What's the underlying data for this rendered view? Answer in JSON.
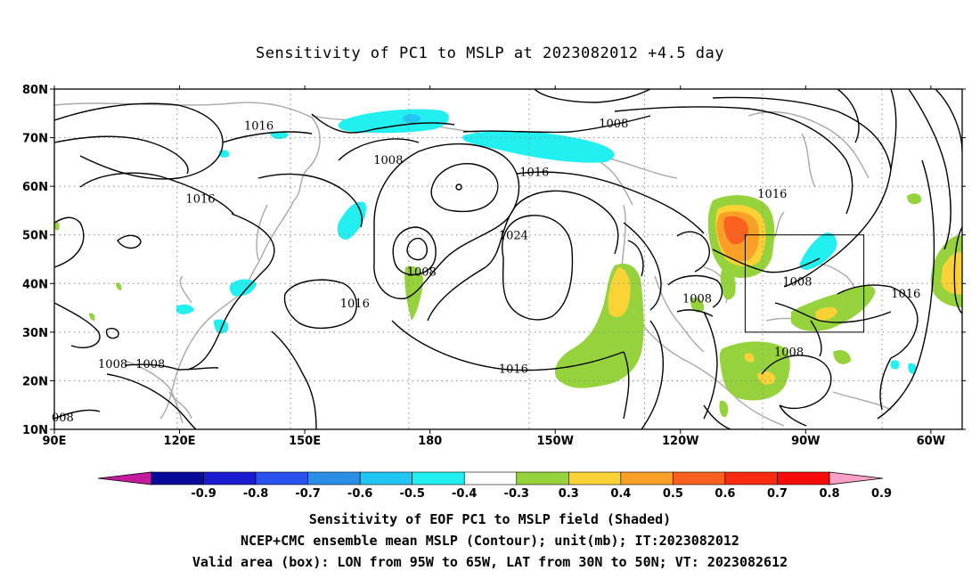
{
  "title": "Sensitivity of PC1 to MSLP at 2023082012 +4.5 day",
  "axes": {
    "lat_labels": [
      "80N",
      "70N",
      "60N",
      "50N",
      "40N",
      "30N",
      "20N",
      "10N"
    ],
    "lon_labels": [
      "90E",
      "120E",
      "150E",
      "180",
      "150W",
      "120W",
      "90W",
      "60W"
    ]
  },
  "contour_labels": [
    {
      "text": "1016",
      "lon": 139,
      "lat": 72
    },
    {
      "text": "1008",
      "lon": -136,
      "lat": 72.5
    },
    {
      "text": "1008",
      "lon": 170,
      "lat": 65
    },
    {
      "text": "1016",
      "lon": -155,
      "lat": 62.5
    },
    {
      "text": "1016",
      "lon": 125,
      "lat": 57
    },
    {
      "text": "1016",
      "lon": -98,
      "lat": 58
    },
    {
      "text": "1024",
      "lon": -160,
      "lat": 49.5
    },
    {
      "text": "1008",
      "lon": 178,
      "lat": 42
    },
    {
      "text": "1008",
      "lon": -92,
      "lat": 40
    },
    {
      "text": "1016",
      "lon": -66,
      "lat": 37.5
    },
    {
      "text": "1016",
      "lon": 162,
      "lat": 35.5
    },
    {
      "text": "1008",
      "lon": -116,
      "lat": 36.5
    },
    {
      "text": "1008",
      "lon": -94,
      "lat": 25.5
    },
    {
      "text": "1016",
      "lon": -160,
      "lat": 22
    },
    {
      "text": "1008",
      "lon": 104,
      "lat": 23
    },
    {
      "text": "1008",
      "lon": 113,
      "lat": 23
    },
    {
      "text": "008",
      "lon": 92,
      "lat": 12
    }
  ],
  "valid_box": {
    "lon_min": -95,
    "lon_max": -65,
    "lat_min": 30,
    "lat_max": 50
  },
  "colorbar": {
    "ticks": [
      "-0.9",
      "-0.8",
      "-0.7",
      "-0.6",
      "-0.5",
      "-0.4",
      "-0.3",
      "0.3",
      "0.4",
      "0.5",
      "0.6",
      "0.7",
      "0.8",
      "0.9"
    ],
    "colors": [
      "#c41a9e",
      "#0a0a9a",
      "#1a1ad0",
      "#2a52f0",
      "#2a8ee8",
      "#22c6f2",
      "#22f0f0",
      "#ffffff",
      "#96d23c",
      "#fad236",
      "#faa028",
      "#fa6020",
      "#fa2a10",
      "#fa0a0a",
      "#f8a0c8"
    ]
  },
  "captions": [
    "Sensitivity of EOF PC1 to MSLP field (Shaded)",
    "NCEP+CMC ensemble mean MSLP (Contour); unit(mb); IT:2023082012",
    "Valid area (box): LON from 95W to 65W, LAT from 30N to 50N; VT: 2023082612"
  ]
}
